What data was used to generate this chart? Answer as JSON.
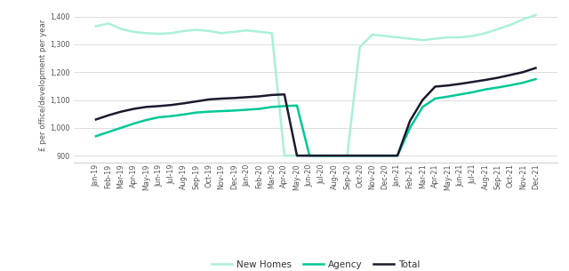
{
  "labels": [
    "Jan-19",
    "Feb-19",
    "Mar-19",
    "Apr-19",
    "May-19",
    "Jun-19",
    "Jul-19",
    "Aug-19",
    "Sep-19",
    "Oct-19",
    "Nov-19",
    "Dec-19",
    "Jan-20",
    "Feb-20",
    "Mar-20",
    "Apr-20",
    "May-20",
    "Jun-20",
    "Jul-20",
    "Aug-20",
    "Sep-20",
    "Oct-20",
    "Nov-20",
    "Dec-20",
    "Jan-21",
    "Feb-21",
    "Mar-21",
    "Apr-21",
    "May-21",
    "Jun-21",
    "Jul-21",
    "Aug-21",
    "Sep-21",
    "Oct-21",
    "Nov-21",
    "Dec-21"
  ],
  "agency": [
    970,
    985,
    1000,
    1015,
    1028,
    1038,
    1042,
    1048,
    1055,
    1058,
    1060,
    1062,
    1065,
    1068,
    1075,
    1078,
    1080,
    900,
    900,
    900,
    900,
    900,
    900,
    900,
    900,
    1000,
    1075,
    1105,
    1112,
    1120,
    1128,
    1138,
    1145,
    1153,
    1162,
    1175
  ],
  "new_homes": [
    1365,
    1375,
    1355,
    1345,
    1340,
    1338,
    1340,
    1348,
    1352,
    1348,
    1340,
    1345,
    1350,
    1345,
    1340,
    900,
    900,
    900,
    900,
    900,
    900,
    1290,
    1335,
    1330,
    1325,
    1320,
    1315,
    1320,
    1325,
    1325,
    1330,
    1340,
    1355,
    1370,
    1390,
    1405
  ],
  "total": [
    1030,
    1045,
    1058,
    1068,
    1075,
    1078,
    1082,
    1088,
    1095,
    1102,
    1105,
    1107,
    1110,
    1113,
    1118,
    1120,
    900,
    900,
    900,
    900,
    900,
    900,
    900,
    900,
    900,
    1025,
    1100,
    1148,
    1152,
    1158,
    1165,
    1172,
    1180,
    1190,
    1200,
    1215
  ],
  "agency_color": "#00c896",
  "new_homes_color": "#aaf0d8",
  "total_color": "#1a1a2e",
  "ylabel": "£ per office/development per year",
  "ylim": [
    875,
    1430
  ],
  "yticks": [
    900,
    1000,
    1100,
    1200,
    1300,
    1400
  ],
  "ytick_labels": [
    "900",
    "1,000",
    "1,100",
    "1,200",
    "1,300",
    "1,400"
  ],
  "grid_color": "#d0d0d0",
  "background_color": "#ffffff",
  "legend_agency": "Agency",
  "legend_new_homes": "New Homes",
  "legend_total": "Total",
  "line_width": 1.8,
  "tick_fontsize": 5.8,
  "ylabel_fontsize": 6.2
}
